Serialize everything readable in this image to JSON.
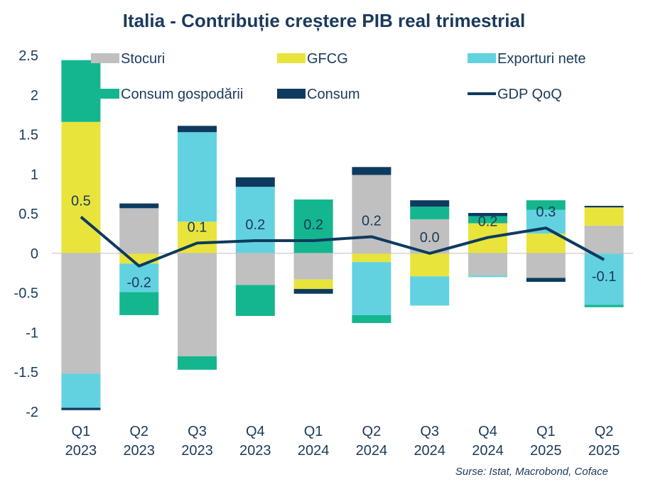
{
  "title": "Italia - Contribuție creștere PIB real trimestrial",
  "source": "Surse: Istat, Macrobond, Coface",
  "chart_data": {
    "type": "bar",
    "stacked": true,
    "categories": [
      [
        "Q1",
        "2023"
      ],
      [
        "Q2",
        "2023"
      ],
      [
        "Q3",
        "2023"
      ],
      [
        "Q4",
        "2023"
      ],
      [
        "Q1",
        "2024"
      ],
      [
        "Q2",
        "2024"
      ],
      [
        "Q3",
        "2024"
      ],
      [
        "Q4",
        "2024"
      ],
      [
        "Q1",
        "2025"
      ],
      [
        "Q2",
        "2025"
      ]
    ],
    "ylim": [
      -2,
      2.5
    ],
    "yticks": [
      "2.5",
      "2",
      "1.5",
      "1",
      "0.5",
      "0",
      "-0.5",
      "-1",
      "-1.5",
      "-2"
    ],
    "grid": false,
    "legend_position": "top",
    "series": [
      {
        "name": "Stocuri",
        "color": "#c0c0c0",
        "values": [
          -1.52,
          0.57,
          -1.3,
          -0.4,
          -0.33,
          0.99,
          0.43,
          -0.28,
          -0.31,
          0.35
        ]
      },
      {
        "name": "GFCG",
        "color": "#e8e43c",
        "values": [
          1.66,
          -0.13,
          0.4,
          0.0,
          -0.12,
          -0.11,
          -0.29,
          0.38,
          0.25,
          0.23
        ]
      },
      {
        "name": "Exporturi nete",
        "color": "#62d2e0",
        "values": [
          -0.43,
          -0.36,
          1.13,
          0.84,
          0.0,
          -0.67,
          -0.37,
          -0.02,
          0.3,
          -0.65
        ]
      },
      {
        "name": "Consum gospodării",
        "color": "#14b68f",
        "values": [
          0.78,
          -0.29,
          -0.17,
          -0.39,
          0.68,
          -0.1,
          0.16,
          0.09,
          0.12,
          -0.03
        ]
      },
      {
        "name": "Consum",
        "color": "#0e3a60",
        "values": [
          -0.03,
          0.06,
          0.08,
          0.12,
          -0.06,
          0.1,
          0.08,
          0.04,
          -0.05,
          0.02
        ]
      }
    ],
    "line": {
      "name": "GDP QoQ",
      "color": "#0e3a60",
      "values": [
        0.46,
        -0.16,
        0.13,
        0.16,
        0.16,
        0.21,
        0.0,
        0.2,
        0.32,
        -0.08
      ],
      "labels": [
        "0.5",
        "-0.2",
        "0.1",
        "0.2",
        "0.2",
        "0.2",
        "0.0",
        "0.2",
        "0.3",
        "-0.1"
      ]
    }
  }
}
